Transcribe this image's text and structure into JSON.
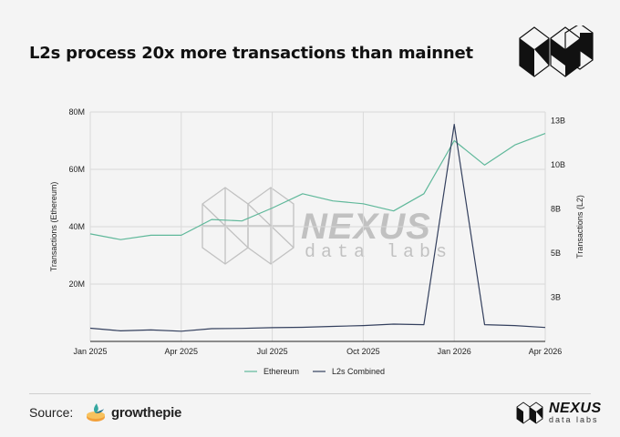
{
  "title": "L2s process 20x more transactions than mainnet",
  "source_label": "Source:",
  "source_name": "growthepie",
  "brand": {
    "name": "NEXUS",
    "sub": "data labs"
  },
  "watermark": {
    "name": "NEXUS",
    "sub": "data labs"
  },
  "colors": {
    "ethereum": "#5fb89a",
    "l2": "#34405e",
    "grid": "#d9d9d9",
    "axis": "#222222"
  },
  "chart_data": {
    "type": "line",
    "title": "L2s process 20x more transactions than mainnet",
    "x": [
      "2025-01",
      "2025-02",
      "2025-03",
      "2025-04",
      "2025-05",
      "2025-06",
      "2025-07",
      "2025-08",
      "2025-09",
      "2025-10",
      "2025-11",
      "2025-12",
      "2026-01",
      "2026-02",
      "2026-03",
      "2026-04"
    ],
    "xticks": [
      "Jan 2025",
      "Apr 2025",
      "Jul 2025",
      "Oct 2025",
      "Jan 2026",
      "Apr 2026"
    ],
    "xtick_positions": [
      0,
      3,
      6,
      9,
      12,
      15
    ],
    "y_left": {
      "label": "Transactions (Ethereum)",
      "lim": [
        0,
        80000000
      ],
      "ticks": [
        "20M",
        "40M",
        "60M",
        "80M"
      ],
      "tick_values": [
        20000000,
        40000000,
        60000000,
        80000000
      ]
    },
    "y_right": {
      "label": "Transactions (L2)",
      "lim": [
        0,
        13000000000
      ],
      "ticks": [
        "3B",
        "5B",
        "8B",
        "10B",
        "13B"
      ],
      "tick_values": [
        2500000000,
        5000000000,
        7500000000,
        10000000000,
        12500000000
      ]
    },
    "series": [
      {
        "name": "Ethereum",
        "axis": "left",
        "values": [
          37500000,
          35500000,
          37000000,
          37000000,
          42500000,
          42000000,
          46500000,
          51500000,
          49000000,
          48000000,
          45500000,
          51500000,
          70000000,
          61500000,
          68500000,
          72500000
        ]
      },
      {
        "name": "L2s Combined",
        "axis": "right",
        "values": [
          750000000,
          600000000,
          650000000,
          580000000,
          720000000,
          740000000,
          780000000,
          800000000,
          850000000,
          900000000,
          980000000,
          950000000,
          12300000000,
          950000000,
          900000000,
          790000000
        ]
      }
    ],
    "legend_position": "bottom",
    "grid": true
  }
}
